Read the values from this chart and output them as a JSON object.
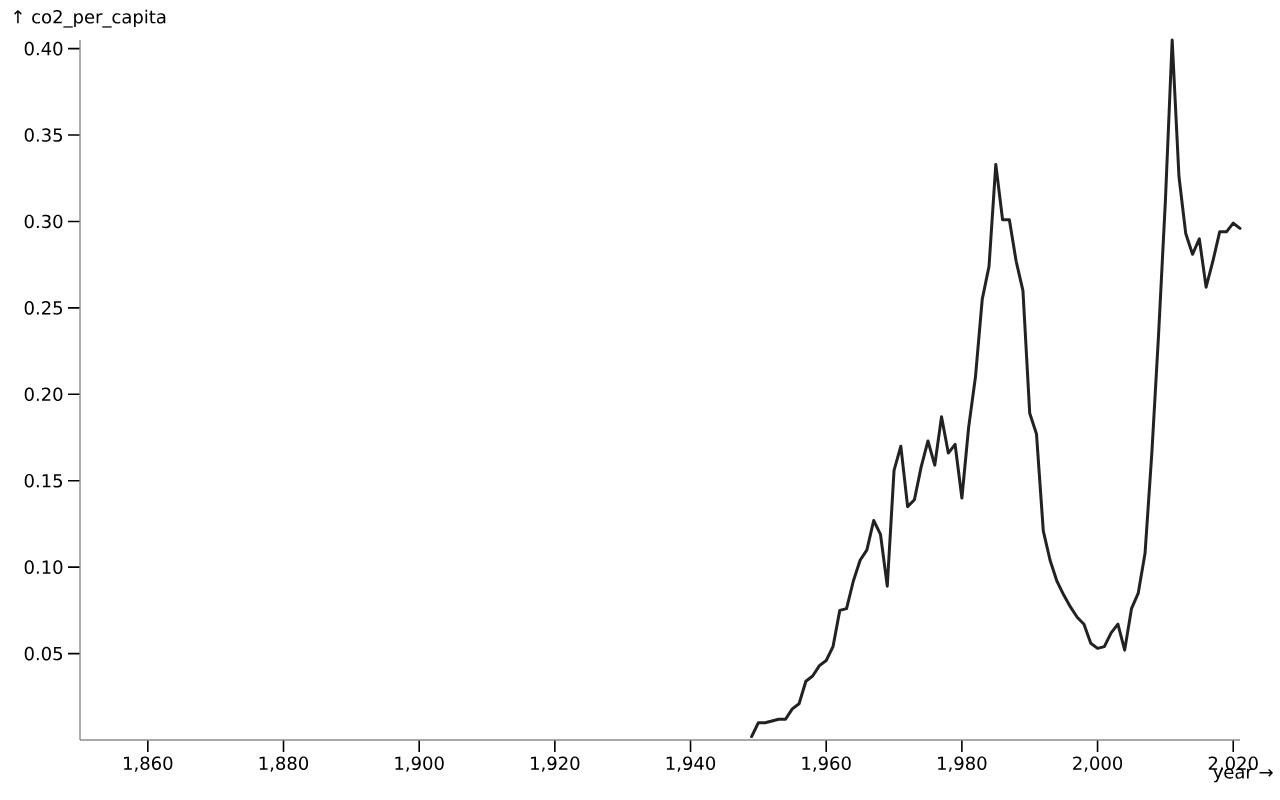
{
  "chart_data": {
    "type": "line",
    "xlabel": "year →",
    "ylabel": "↑ co2_per_capita",
    "x": [
      1949,
      1950,
      1951,
      1952,
      1953,
      1954,
      1955,
      1956,
      1957,
      1958,
      1959,
      1960,
      1961,
      1962,
      1963,
      1964,
      1965,
      1966,
      1967,
      1968,
      1969,
      1970,
      1971,
      1972,
      1973,
      1974,
      1975,
      1976,
      1977,
      1978,
      1979,
      1980,
      1981,
      1982,
      1983,
      1984,
      1985,
      1986,
      1987,
      1988,
      1989,
      1990,
      1991,
      1992,
      1993,
      1994,
      1995,
      1996,
      1997,
      1998,
      1999,
      2000,
      2001,
      2002,
      2003,
      2004,
      2005,
      2006,
      2007,
      2008,
      2009,
      2010,
      2011,
      2012,
      2013,
      2014,
      2015,
      2016,
      2017,
      2018,
      2019,
      2020,
      2021
    ],
    "series": [
      {
        "color": "#222222",
        "values": [
          0.002,
          0.01,
          0.01,
          0.011,
          0.012,
          0.012,
          0.018,
          0.021,
          0.034,
          0.037,
          0.043,
          0.046,
          0.054,
          0.075,
          0.076,
          0.092,
          0.104,
          0.11,
          0.127,
          0.119,
          0.089,
          0.156,
          0.17,
          0.135,
          0.139,
          0.158,
          0.173,
          0.159,
          0.187,
          0.166,
          0.171,
          0.14,
          0.181,
          0.21,
          0.255,
          0.274,
          0.333,
          0.301,
          0.301,
          0.277,
          0.26,
          0.189,
          0.177,
          0.121,
          0.104,
          0.092,
          0.084,
          0.077,
          0.071,
          0.067,
          0.056,
          0.053,
          0.054,
          0.062,
          0.067,
          0.052,
          0.076,
          0.085,
          0.108,
          0.166,
          0.235,
          0.312,
          0.405,
          0.326,
          0.293,
          0.281,
          0.29,
          0.262,
          0.277,
          0.294,
          0.294,
          0.299,
          0.296
        ]
      }
    ],
    "xlim": [
      1850,
      2021
    ],
    "ylim": [
      0,
      0.405
    ],
    "xticks": [
      {
        "value": 1860,
        "label": "1,860"
      },
      {
        "value": 1880,
        "label": "1,880"
      },
      {
        "value": 1900,
        "label": "1,900"
      },
      {
        "value": 1920,
        "label": "1,920"
      },
      {
        "value": 1940,
        "label": "1,940"
      },
      {
        "value": 1960,
        "label": "1,960"
      },
      {
        "value": 1980,
        "label": "1,980"
      },
      {
        "value": 2000,
        "label": "2,000"
      },
      {
        "value": 2020,
        "label": "2,020"
      }
    ],
    "yticks": [
      0.05,
      {
        "value": 0.1,
        "label": "0.10"
      },
      0.15,
      {
        "value": 0.2,
        "label": "0.20"
      },
      0.25,
      {
        "value": 0.3,
        "label": "0.30"
      },
      0.35,
      {
        "value": 0.4,
        "label": "0.40"
      }
    ],
    "line_style": "solid"
  }
}
